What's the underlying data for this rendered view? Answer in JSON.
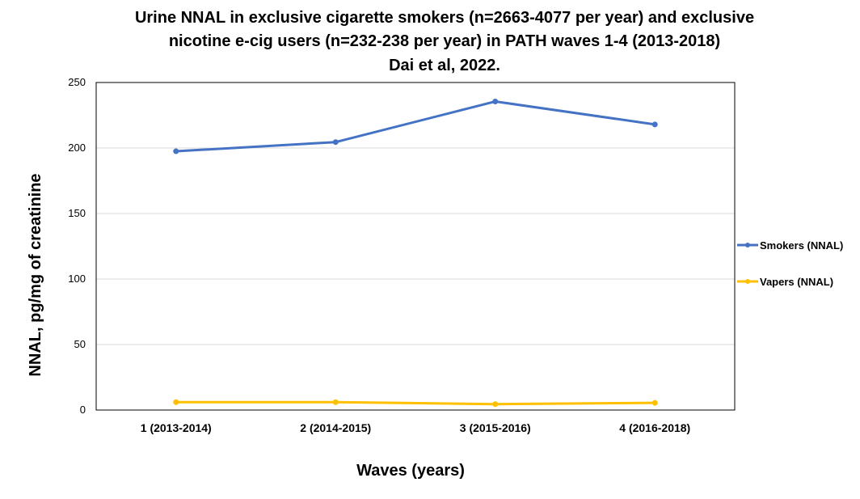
{
  "chart_data": {
    "type": "line",
    "title_lines": [
      "Urine NNAL  in exclusive cigarette smokers (n=2663-4077 per year) and exclusive",
      "nicotine e-cig users (n=232-238 per year) in PATH waves 1-4 (2013-2018)",
      "Dai et al, 2022."
    ],
    "xlabel": "Waves (years)",
    "ylabel": "NNAL, pg/mg of creatinine",
    "categories": [
      "1 (2013-2014)",
      "2 (2014-2015)",
      "3 (2015-2016)",
      "4 (2016-2018)"
    ],
    "ylim": [
      0,
      250
    ],
    "yticks": [
      0,
      50,
      100,
      150,
      200,
      250
    ],
    "grid": true,
    "legend_position": "right",
    "series": [
      {
        "name": "Smokers (NNAL)",
        "color": "#4472C4",
        "values": [
          197.5,
          204.5,
          235.5,
          218
        ]
      },
      {
        "name": "Vapers (NNAL)",
        "color": "#FFC000",
        "values": [
          6,
          6,
          4.5,
          5.5
        ]
      }
    ]
  }
}
